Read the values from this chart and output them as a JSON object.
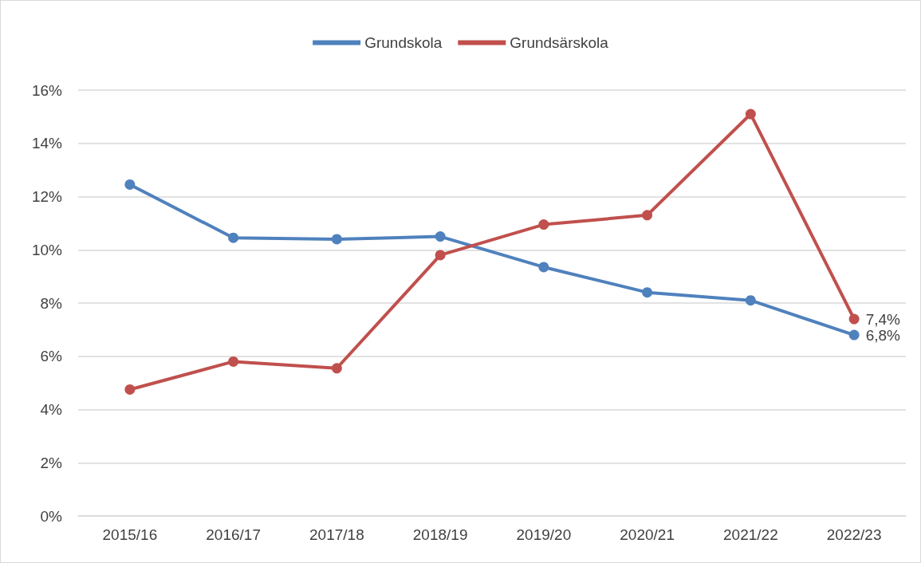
{
  "chart_data": {
    "type": "line",
    "categories": [
      "2015/16",
      "2016/17",
      "2017/18",
      "2018/19",
      "2019/20",
      "2020/21",
      "2021/22",
      "2022/23"
    ],
    "series": [
      {
        "name": "Grundskola",
        "color": "#4f81bd",
        "values": [
          12.45,
          10.45,
          10.4,
          10.5,
          9.35,
          8.4,
          8.1,
          6.8
        ],
        "value_labels": [
          null,
          null,
          null,
          null,
          null,
          null,
          null,
          "6,8%"
        ]
      },
      {
        "name": "Grundsärskola",
        "color": "#c0504d",
        "values": [
          4.75,
          5.8,
          5.55,
          9.8,
          10.95,
          11.3,
          15.1,
          7.4
        ],
        "value_labels": [
          null,
          null,
          null,
          null,
          null,
          null,
          null,
          "7,4%"
        ]
      }
    ],
    "ylim": [
      0,
      16
    ],
    "yticks": [
      {
        "value": 0,
        "label": "0%"
      },
      {
        "value": 2,
        "label": "2%"
      },
      {
        "value": 4,
        "label": "4%"
      },
      {
        "value": 6,
        "label": "6%"
      },
      {
        "value": 8,
        "label": "8%"
      },
      {
        "value": 10,
        "label": "10%"
      },
      {
        "value": 12,
        "label": "12%"
      },
      {
        "value": 14,
        "label": "14%"
      },
      {
        "value": 16,
        "label": "16%"
      }
    ],
    "grid": "y",
    "legend": "top",
    "marker": "circle",
    "line_style": "solid"
  }
}
